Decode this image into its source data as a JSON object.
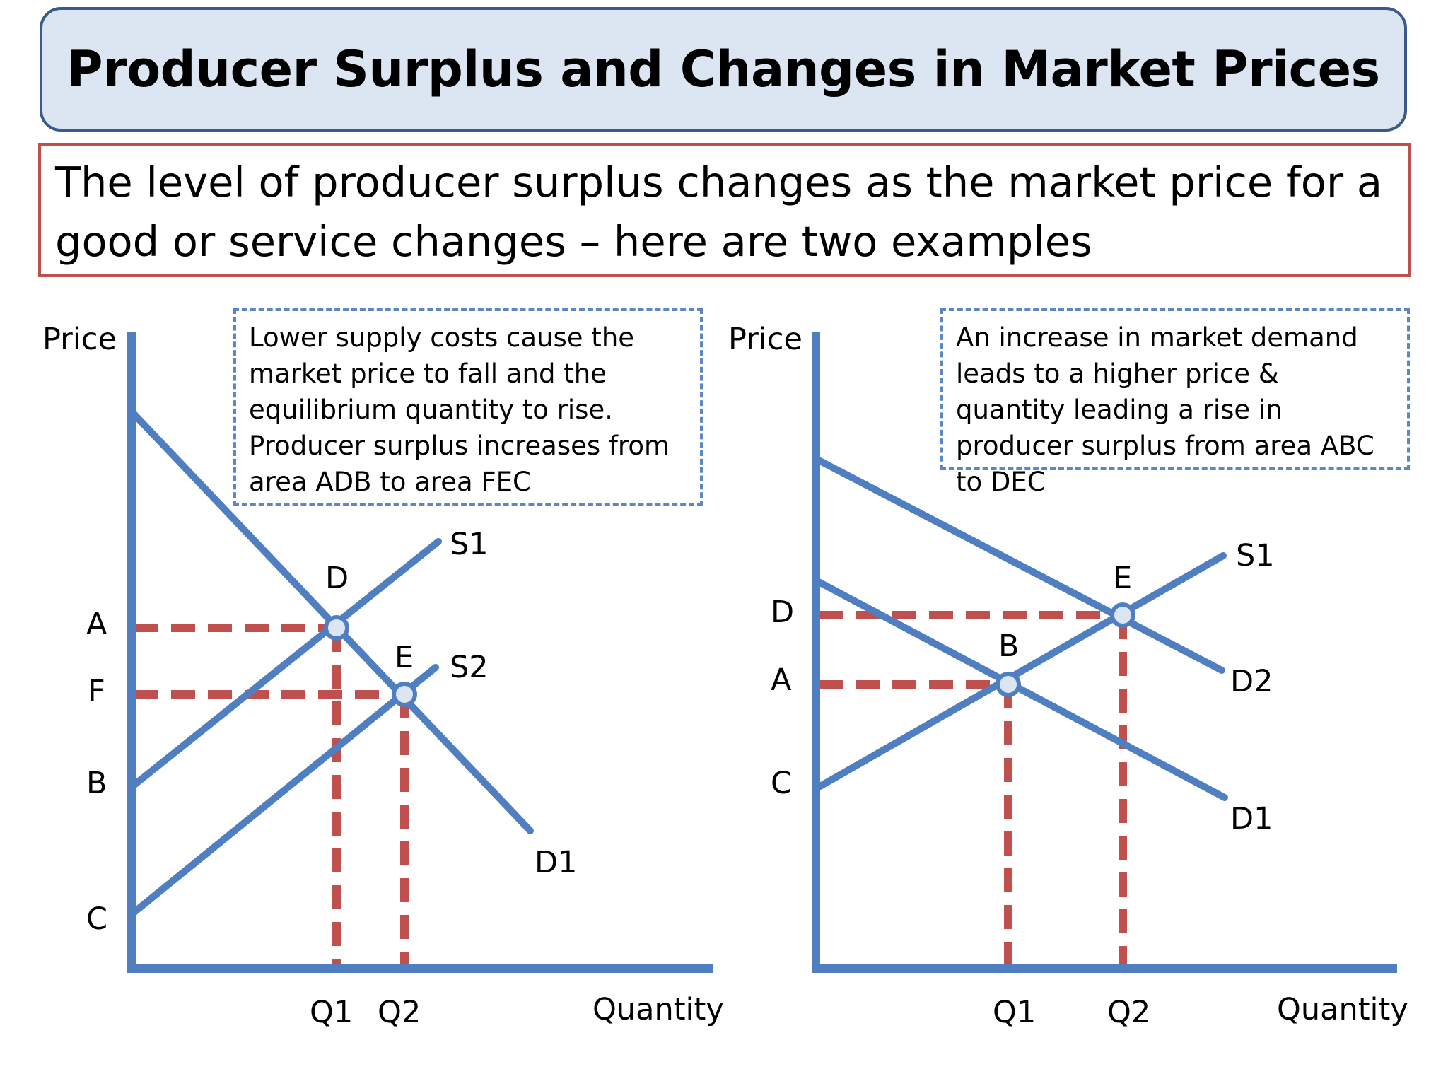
{
  "title": "Producer Surplus and Changes in Market Prices",
  "subtitle": "The level of producer surplus changes as the market price for a good or service changes – here are two examples",
  "colors": {
    "curve": "#4f7fc1",
    "dashed_guide": "#c0504d",
    "title_fill": "#dce6f2",
    "title_border": "#3a5a8c",
    "subtitle_border": "#c0504d",
    "note_border": "#5b87c5"
  },
  "left_diagram": {
    "y_axis_label": "Price",
    "x_axis_label": "Quantity",
    "note": "Lower supply costs cause the market price to fall and the equilibrium quantity to rise. Producer surplus increases from area ADB to area FEC",
    "price_labels": {
      "A": "A",
      "F": "F",
      "B": "B",
      "C": "C"
    },
    "quantity_labels": {
      "Q1": "Q1",
      "Q2": "Q2"
    },
    "curve_labels": {
      "S1": "S1",
      "S2": "S2",
      "D1": "D1"
    },
    "point_labels": {
      "D": "D",
      "E": "E"
    }
  },
  "right_diagram": {
    "y_axis_label": "Price",
    "x_axis_label": "Quantity",
    "note": "An increase in market demand leads to a higher price & quantity leading a rise in producer surplus from area ABC to DEC",
    "price_labels": {
      "D": "D",
      "A": "A",
      "C": "C"
    },
    "quantity_labels": {
      "Q1": "Q1",
      "Q2": "Q2"
    },
    "curve_labels": {
      "S1": "S1",
      "D1": "D1",
      "D2": "D2"
    },
    "point_labels": {
      "B": "B",
      "E": "E"
    }
  }
}
